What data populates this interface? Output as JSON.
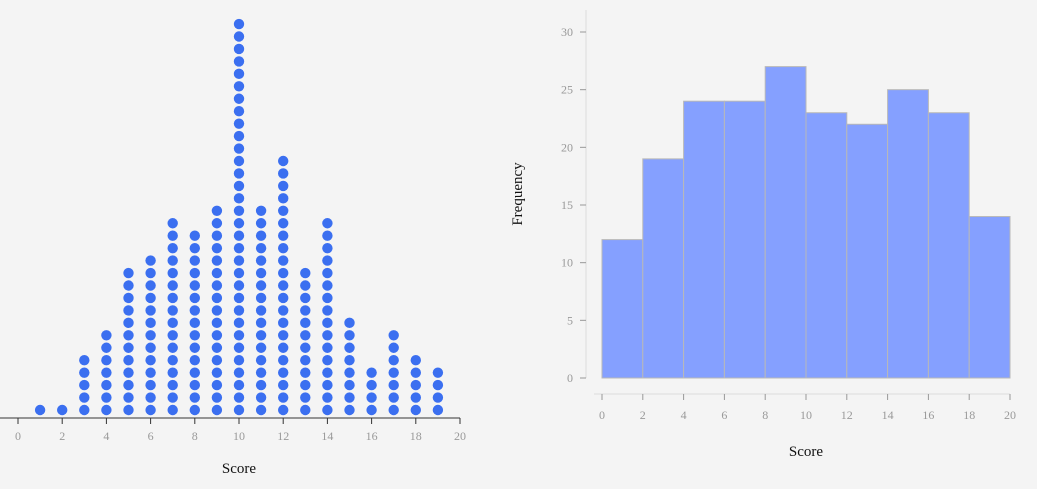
{
  "chart_data": [
    {
      "type": "scatter",
      "subtype": "dot-plot",
      "xlabel": "Score",
      "ylabel": "",
      "xlim": [
        0,
        20
      ],
      "xticks": [
        0,
        2,
        4,
        6,
        8,
        10,
        12,
        14,
        16,
        18,
        20
      ],
      "x": [
        1,
        2,
        3,
        4,
        5,
        6,
        7,
        8,
        9,
        10,
        11,
        12,
        13,
        14,
        15,
        16,
        17,
        18,
        19
      ],
      "counts": [
        1,
        1,
        5,
        7,
        12,
        13,
        16,
        15,
        17,
        32,
        17,
        21,
        12,
        16,
        8,
        4,
        7,
        5,
        4
      ],
      "color": "#3b6ff0",
      "grid": false
    },
    {
      "type": "bar",
      "subtype": "histogram",
      "xlabel": "Score",
      "ylabel": "Frequency",
      "xlim": [
        0,
        20
      ],
      "ylim": [
        0,
        30
      ],
      "xticks": [
        0,
        2,
        4,
        6,
        8,
        10,
        12,
        14,
        16,
        18,
        20
      ],
      "yticks": [
        0,
        5,
        10,
        15,
        20,
        25,
        30
      ],
      "bins": [
        [
          0,
          2
        ],
        [
          2,
          4
        ],
        [
          4,
          6
        ],
        [
          6,
          8
        ],
        [
          8,
          10
        ],
        [
          10,
          12
        ],
        [
          12,
          14
        ],
        [
          14,
          16
        ],
        [
          16,
          18
        ],
        [
          18,
          20
        ]
      ],
      "values": [
        12,
        19,
        24,
        24,
        27,
        23,
        22,
        25,
        23,
        14
      ],
      "color": "#85a0ff",
      "grid": false
    }
  ]
}
